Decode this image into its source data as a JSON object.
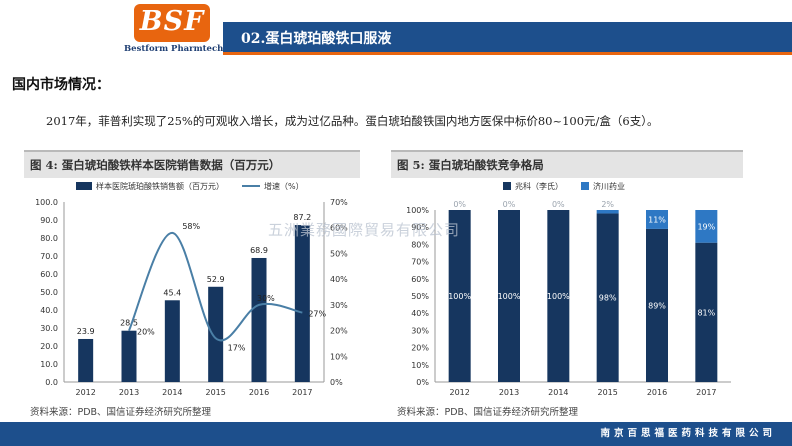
{
  "header": {
    "logo_text": "BSF",
    "logo_subtext": "Bestform Pharmtech",
    "title": "02.蛋白琥珀酸铁口服液"
  },
  "section": {
    "title": "国内市场情况：",
    "description": "2017年，菲普利实现了25%的可观收入增长，成为过亿品种。蛋白琥珀酸铁国内地方医保中标价80~100元/盒（6支）。"
  },
  "watermark": "五洲業務國際貿易有限公司",
  "footer": {
    "text": "南京百思福医药科技有限公司"
  },
  "colors": {
    "navy": "#16365f",
    "light_blue": "#2e78c4",
    "brand_orange": "#e8650f",
    "header_blue": "#1d4f8c"
  },
  "chart_data": [
    {
      "type": "bar",
      "title": "图 4:  蛋白琥珀酸铁样本医院销售数据（百万元）",
      "source": "资料来源：PDB、国信证券经济研究所整理",
      "categories": [
        "2012",
        "2013",
        "2014",
        "2015",
        "2016",
        "2017"
      ],
      "series": [
        {
          "name": "样本医院琥珀酸铁销售额（百万元）",
          "type": "bar",
          "axis": "left",
          "values": [
            23.9,
            28.5,
            45.4,
            52.9,
            68.9,
            87.2
          ]
        },
        {
          "name": "增速（%）",
          "type": "line",
          "axis": "right",
          "values": [
            null,
            20,
            58,
            17,
            30,
            27
          ],
          "labels": [
            "",
            "20%",
            "58%",
            "17%",
            "30%",
            "27%"
          ]
        }
      ],
      "y_left": {
        "min": 0,
        "max": 100,
        "ticks": [
          "0.0",
          "10.0",
          "20.0",
          "30.0",
          "40.0",
          "50.0",
          "60.0",
          "70.0",
          "80.0",
          "90.0",
          "100.0"
        ]
      },
      "y_right": {
        "min": 0,
        "max": 70,
        "ticks": [
          "0%",
          "10%",
          "20%",
          "30%",
          "40%",
          "50%",
          "60%",
          "70%"
        ]
      },
      "legend": "top"
    },
    {
      "type": "bar",
      "stacked": true,
      "title": "图 5:  蛋白琥珀酸铁竞争格局",
      "source": "资料来源：PDB、国信证券经济研究所整理",
      "categories": [
        "2012",
        "2013",
        "2014",
        "2015",
        "2016",
        "2017"
      ],
      "series": [
        {
          "name": "兆科（李氏）",
          "values": [
            100,
            100,
            100,
            98,
            89,
            81
          ]
        },
        {
          "name": "济川药业",
          "values": [
            0,
            0,
            0,
            2,
            11,
            19
          ]
        }
      ],
      "y": {
        "min": 0,
        "max": 100,
        "ticks": [
          "0%",
          "10%",
          "20%",
          "30%",
          "40%",
          "50%",
          "60%",
          "70%",
          "80%",
          "90%",
          "100%"
        ]
      },
      "legend": "top"
    }
  ]
}
